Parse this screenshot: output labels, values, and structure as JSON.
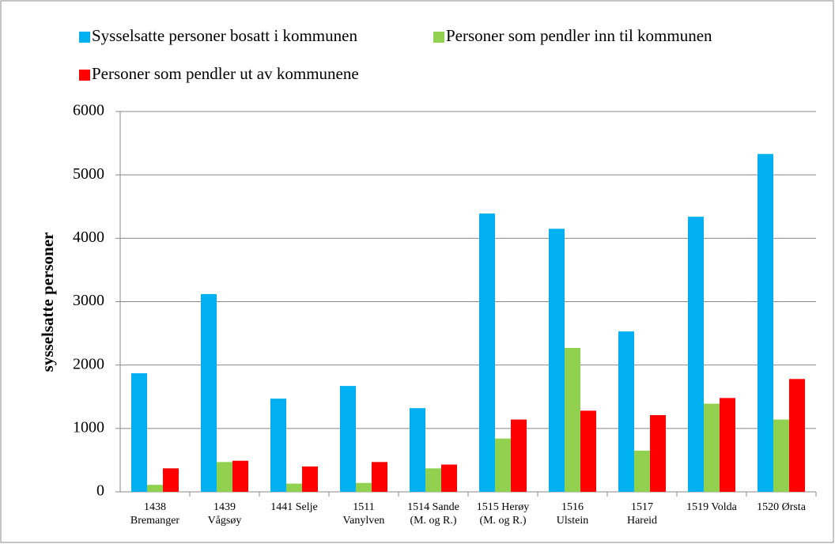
{
  "chart_data": {
    "type": "bar",
    "y_label": "sysselsatte personer",
    "categories": [
      [
        "1438",
        "Bremanger"
      ],
      [
        "1439",
        "Vågsøy"
      ],
      [
        "1441 Selje"
      ],
      [
        "1511",
        "Vanylven"
      ],
      [
        "1514 Sande",
        "(M. og R.)"
      ],
      [
        "1515 Herøy",
        "(M. og R.)"
      ],
      [
        "1516",
        "Ulstein"
      ],
      [
        "1517",
        "Hareid"
      ],
      [
        "1519 Volda"
      ],
      [
        "1520 Ørsta"
      ]
    ],
    "series": [
      {
        "name": "Sysselsatte personer bosatt i kommunen",
        "color": "#00b0f0",
        "values": [
          1870,
          3120,
          1470,
          1670,
          1320,
          4390,
          4150,
          2530,
          4340,
          5330
        ]
      },
      {
        "name": "Personer som pendler inn til kommunen",
        "color": "#92d050",
        "values": [
          110,
          470,
          130,
          140,
          370,
          840,
          2270,
          650,
          1390,
          1140
        ]
      },
      {
        "name": "Personer som pendler ut av kommunene",
        "color": "#ff0000",
        "values": [
          370,
          490,
          400,
          470,
          430,
          1140,
          1280,
          1210,
          1480,
          1780
        ]
      }
    ],
    "ylim": [
      0,
      6000
    ],
    "yticks": [
      0,
      1000,
      2000,
      3000,
      4000,
      5000,
      6000
    ],
    "grid": true
  }
}
